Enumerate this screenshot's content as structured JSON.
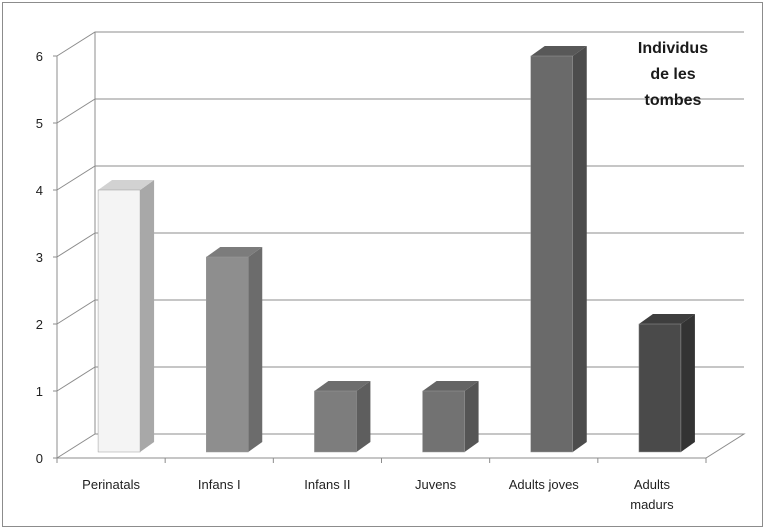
{
  "chart_data": {
    "type": "bar",
    "title_lines": [
      "Individus",
      "de les",
      "tombes"
    ],
    "categories": [
      [
        "Perinatals"
      ],
      [
        "Infans I"
      ],
      [
        "Infans II"
      ],
      [
        "Juvens"
      ],
      [
        "Adults joves"
      ],
      [
        "Adults",
        "madurs"
      ]
    ],
    "values": [
      4,
      3,
      1,
      1,
      6,
      2
    ],
    "ylim": [
      0,
      6
    ],
    "yticks": [
      "0",
      "1",
      "2",
      "3",
      "4",
      "5",
      "6"
    ],
    "grid": true,
    "bar_colors": [
      {
        "front": "#f4f4f4",
        "side": "#a8a8a8",
        "top": "#d2d2d2"
      },
      {
        "front": "#8e8e8e",
        "side": "#6c6c6c",
        "top": "#7c7c7c"
      },
      {
        "front": "#7d7d7d",
        "side": "#5e5e5e",
        "top": "#6d6d6d"
      },
      {
        "front": "#727272",
        "side": "#555555",
        "top": "#646464"
      },
      {
        "front": "#6a6a6a",
        "side": "#4c4c4c",
        "top": "#585858"
      },
      {
        "front": "#4a4a4a",
        "side": "#333333",
        "top": "#3e3e3e"
      }
    ]
  }
}
